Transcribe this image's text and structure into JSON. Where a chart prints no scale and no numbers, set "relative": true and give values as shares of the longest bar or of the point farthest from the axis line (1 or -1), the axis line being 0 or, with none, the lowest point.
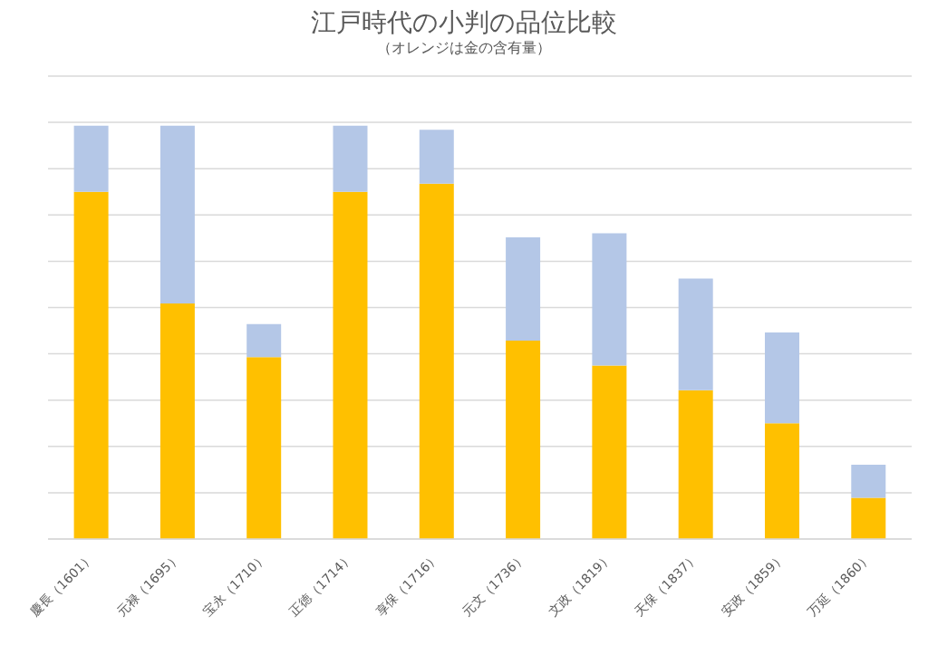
{
  "chart_data": {
    "type": "bar",
    "title": "江戸時代の小判の品位比較",
    "subtitle": "（オレンジは金の含有量）",
    "categories": [
      "慶長（1601）",
      "元禄（1695）",
      "宝永（1710）",
      "正徳（1714）",
      "享保（1716）",
      "元文（1736）",
      "文政（1819）",
      "天保（1837）",
      "安政（1859）",
      "万延（1860）"
    ],
    "series": [
      {
        "color": "#ffc000",
        "values": [
          0.84,
          0.57,
          0.44,
          0.84,
          0.86,
          0.48,
          0.42,
          0.36,
          0.28,
          0.1
        ]
      },
      {
        "color": "#b4c7e7",
        "values": [
          0.16,
          0.43,
          0.08,
          0.16,
          0.13,
          0.25,
          0.32,
          0.27,
          0.22,
          0.08
        ]
      }
    ],
    "stacked": true,
    "relative": true,
    "grid": "y"
  }
}
